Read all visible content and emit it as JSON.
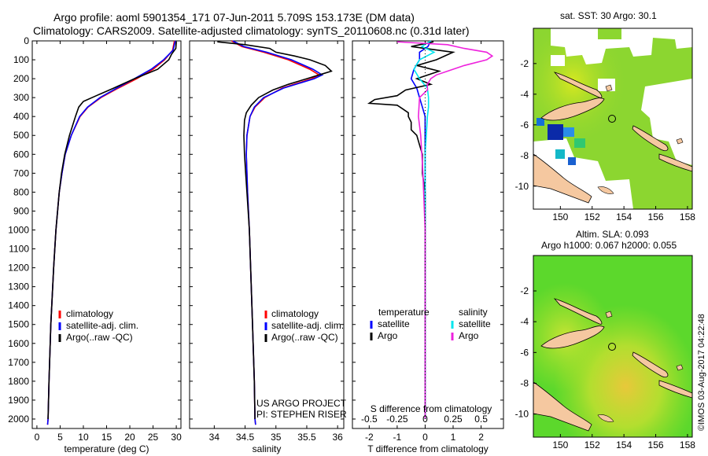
{
  "title": {
    "line1": "Argo profile: aoml 5901354_171 07-Jun-2011 5.709S 153.173E (DM data)",
    "line2": "Climatology: CARS2009. Satellite-adjusted climatology: synTS_20110608.nc (0.31d later)"
  },
  "colors": {
    "climatology": "#ff0000",
    "satellite": "#0000ff",
    "argo": "#000000",
    "sal_satellite": "#00e5ee",
    "sal_argo": "#ee22dd",
    "land": "#f5c8a0",
    "nodata": "#ffffff"
  },
  "depth_axis": {
    "ticks": [
      "0",
      "100",
      "200",
      "300",
      "400",
      "500",
      "600",
      "700",
      "800",
      "900",
      "1000",
      "1100",
      "1200",
      "1300",
      "1400",
      "1500",
      "1600",
      "1700",
      "1800",
      "1900",
      "2000"
    ]
  },
  "credit": {
    "project": "US ARGO PROJECT",
    "pi": "PI: STEPHEN RISER",
    "stamp": "©IMOS 03-Aug-2017 04:22:48"
  },
  "chart_data": [
    {
      "type": "line",
      "name": "temperature-panel",
      "xlabel": "temperature (deg C)",
      "ylabel": "",
      "xlim": [
        -1,
        31
      ],
      "ylim": [
        2050,
        0
      ],
      "xticks": [
        0,
        5,
        10,
        15,
        20,
        25,
        30
      ],
      "xtick_labels": [
        "0",
        "5",
        "10",
        "15",
        "20",
        "25",
        "30"
      ],
      "legend": [
        "climatology",
        "satellite-adj. clim.",
        "Argo(..raw -QC)"
      ],
      "series": [
        {
          "name": "climatology",
          "color_key": "climatology",
          "depth": [
            0,
            50,
            100,
            150,
            200,
            250,
            300,
            350,
            400,
            500,
            600,
            700,
            800,
            1000,
            1200,
            1500,
            1800,
            2000,
            2030
          ],
          "values": [
            29.6,
            29.2,
            27.5,
            25.0,
            21.5,
            17.5,
            13.8,
            11.0,
            9.3,
            7.4,
            6.1,
            5.4,
            4.8,
            4.1,
            3.6,
            3.0,
            2.6,
            2.4,
            2.3
          ]
        },
        {
          "name": "satellite-adj. clim.",
          "color_key": "satellite",
          "depth": [
            0,
            50,
            100,
            150,
            200,
            250,
            300,
            350,
            400,
            500,
            600,
            700,
            800,
            1000,
            1200,
            1500,
            1800,
            2000,
            2030
          ],
          "values": [
            29.8,
            29.3,
            27.3,
            24.6,
            21.0,
            17.2,
            13.6,
            10.9,
            9.2,
            7.4,
            6.1,
            5.4,
            4.8,
            4.1,
            3.6,
            3.0,
            2.6,
            2.4,
            2.3
          ]
        },
        {
          "name": "Argo(..raw -QC)",
          "color_key": "argo",
          "depth": [
            5,
            40,
            70,
            100,
            150,
            200,
            250,
            290,
            320,
            350,
            400,
            500,
            600,
            700,
            800,
            1000,
            1200,
            1500,
            1800,
            2000
          ],
          "values": [
            30.0,
            29.9,
            29.0,
            28.4,
            26.0,
            21.0,
            16.5,
            12.8,
            10.0,
            9.0,
            8.3,
            7.0,
            6.0,
            5.3,
            4.8,
            4.1,
            3.6,
            3.0,
            2.6,
            2.4
          ]
        }
      ]
    },
    {
      "type": "line",
      "name": "salinity-panel",
      "xlabel": "salinity",
      "xlim": [
        33.6,
        36.1
      ],
      "ylim": [
        2050,
        0
      ],
      "xticks": [
        34,
        34.5,
        35,
        35.5,
        36
      ],
      "xtick_labels": [
        "34",
        "34.5",
        "35",
        "35.5",
        "36"
      ],
      "legend": [
        "climatology",
        "satellite-adj. clim.",
        "Argo(..raw -QC)"
      ],
      "series": [
        {
          "name": "climatology",
          "color_key": "climatology",
          "depth": [
            0,
            30,
            60,
            100,
            150,
            180,
            200,
            250,
            300,
            350,
            400,
            500,
            600,
            700,
            800,
            1000,
            1200,
            1500,
            1800,
            2000,
            2030
          ],
          "values": [
            34.28,
            34.45,
            34.8,
            35.2,
            35.55,
            35.7,
            35.58,
            35.1,
            34.82,
            34.66,
            34.58,
            34.53,
            34.52,
            34.53,
            34.54,
            34.57,
            34.59,
            34.62,
            34.65,
            34.66,
            34.67
          ]
        },
        {
          "name": "satellite-adj. clim.",
          "color_key": "satellite",
          "depth": [
            0,
            30,
            60,
            100,
            150,
            180,
            200,
            250,
            300,
            350,
            400,
            500,
            600,
            700,
            800,
            1000,
            1200,
            1500,
            1800,
            2000,
            2030
          ],
          "values": [
            34.3,
            34.48,
            34.85,
            35.25,
            35.6,
            35.75,
            35.62,
            35.12,
            34.8,
            34.65,
            34.58,
            34.53,
            34.52,
            34.53,
            34.54,
            34.57,
            34.59,
            34.62,
            34.65,
            34.66,
            34.67
          ]
        },
        {
          "name": "Argo(..raw -QC)",
          "color_key": "argo",
          "depth": [
            5,
            20,
            40,
            60,
            80,
            100,
            130,
            160,
            180,
            200,
            230,
            260,
            300,
            340,
            380,
            420,
            500,
            600,
            700,
            800,
            1000,
            1200,
            1500,
            1800,
            2000
          ],
          "values": [
            34.05,
            34.5,
            34.9,
            35.0,
            35.3,
            35.55,
            35.8,
            35.9,
            35.7,
            35.5,
            35.2,
            34.95,
            34.72,
            34.6,
            34.52,
            34.49,
            34.48,
            34.49,
            34.51,
            34.53,
            34.57,
            34.59,
            34.62,
            34.65,
            34.66
          ]
        }
      ]
    },
    {
      "type": "line",
      "name": "difference-panel",
      "xlabel": "T difference from climatology",
      "top_xlabel": "S difference from climatology",
      "xlim": [
        -2.6,
        2.8
      ],
      "ylim": [
        2050,
        0
      ],
      "xticks": [
        -2,
        -1,
        0,
        1,
        2
      ],
      "xtick_labels": [
        "-2",
        "-1",
        "0",
        "1",
        "2"
      ],
      "top_ticks": [
        -0.5,
        -0.25,
        0,
        0.25,
        0.5
      ],
      "top_tick_labels": [
        "-0.5",
        "-0.25",
        "0",
        "0.25",
        "0.5"
      ],
      "s_to_t_scale": 4,
      "legend_temperature_title": "temperature",
      "legend_salinity_title": "salinity",
      "legend_temperature": [
        "satellite",
        "Argo"
      ],
      "legend_salinity": [
        "satellite",
        "Argo"
      ],
      "series": [
        {
          "name": "T satellite",
          "color_key": "satellite",
          "depth": [
            0,
            30,
            60,
            100,
            150,
            200,
            250,
            300,
            350,
            400,
            500,
            600,
            800,
            1000,
            1500,
            2000
          ],
          "values": [
            0.2,
            0.1,
            -0.2,
            -0.2,
            -0.4,
            -0.5,
            -0.3,
            -0.2,
            -0.1,
            0,
            0,
            0,
            0,
            0,
            0,
            0
          ]
        },
        {
          "name": "T Argo",
          "color_key": "argo",
          "depth": [
            5,
            30,
            60,
            100,
            130,
            160,
            200,
            230,
            260,
            290,
            310,
            330,
            340,
            360,
            380,
            400,
            430,
            470,
            500,
            550,
            600,
            700,
            800,
            1000,
            1500,
            2000
          ],
          "values": [
            0.3,
            -0.5,
            1.0,
            0.4,
            -0.3,
            0.5,
            -0.3,
            0.2,
            -0.7,
            -1.0,
            -1.8,
            -2.0,
            -1.0,
            -0.8,
            -0.6,
            -0.6,
            -0.5,
            -0.5,
            -0.3,
            -0.2,
            -0.1,
            -0.1,
            0,
            0,
            0,
            0
          ]
        },
        {
          "name": "S satellite",
          "color_key": "sal_satellite",
          "depth": [
            0,
            30,
            60,
            100,
            150,
            200,
            250,
            300,
            350,
            400,
            500,
            600,
            800,
            1000,
            1500,
            2000
          ],
          "values": [
            0.05,
            -0.03,
            0.08,
            -0.05,
            -0.1,
            -0.05,
            0.02,
            0.03,
            0.03,
            0.02,
            0.01,
            0,
            0,
            0,
            0,
            0
          ]
        },
        {
          "name": "S Argo",
          "color_key": "sal_argo",
          "depth": [
            5,
            20,
            40,
            60,
            80,
            100,
            130,
            160,
            180,
            200,
            230,
            260,
            300,
            400,
            500,
            700,
            1000,
            1500,
            2000
          ],
          "values": [
            -0.25,
            0.2,
            0.35,
            0.55,
            0.6,
            0.55,
            0.35,
            0.2,
            0.1,
            0.05,
            0.02,
            0.02,
            -0.05,
            -0.06,
            -0.04,
            -0.02,
            0,
            0,
            0
          ]
        }
      ]
    },
    {
      "type": "heatmap",
      "name": "sst-map",
      "title": "sat. SST: 30 Argo: 30.1",
      "xlim": [
        148.3,
        158.3
      ],
      "ylim": [
        -11.5,
        0.3
      ],
      "xticks": [
        150,
        152,
        154,
        156,
        158
      ],
      "xtick_labels": [
        "150",
        "152",
        "154",
        "156",
        "158"
      ],
      "yticks": [
        -2,
        -4,
        -6,
        -8,
        -10
      ],
      "ytick_labels": [
        "-2",
        "-4",
        "-6",
        "-8",
        "-10"
      ],
      "marker": {
        "lon": 153.173,
        "lat": -5.709
      }
    },
    {
      "type": "heatmap",
      "name": "sla-map",
      "title": "Altim. SLA: 0.093",
      "subtitle": "Argo h1000: 0.067 h2000: 0.055",
      "xlim": [
        148.3,
        158.3
      ],
      "ylim": [
        -11.5,
        0.3
      ],
      "xticks": [
        150,
        152,
        154,
        156,
        158
      ],
      "xtick_labels": [
        "150",
        "152",
        "154",
        "156",
        "158"
      ],
      "yticks": [
        -2,
        -4,
        -6,
        -8,
        -10
      ],
      "ytick_labels": [
        "-2",
        "-4",
        "-6",
        "-8",
        "-10"
      ],
      "marker": {
        "lon": 153.173,
        "lat": -5.709
      }
    }
  ]
}
